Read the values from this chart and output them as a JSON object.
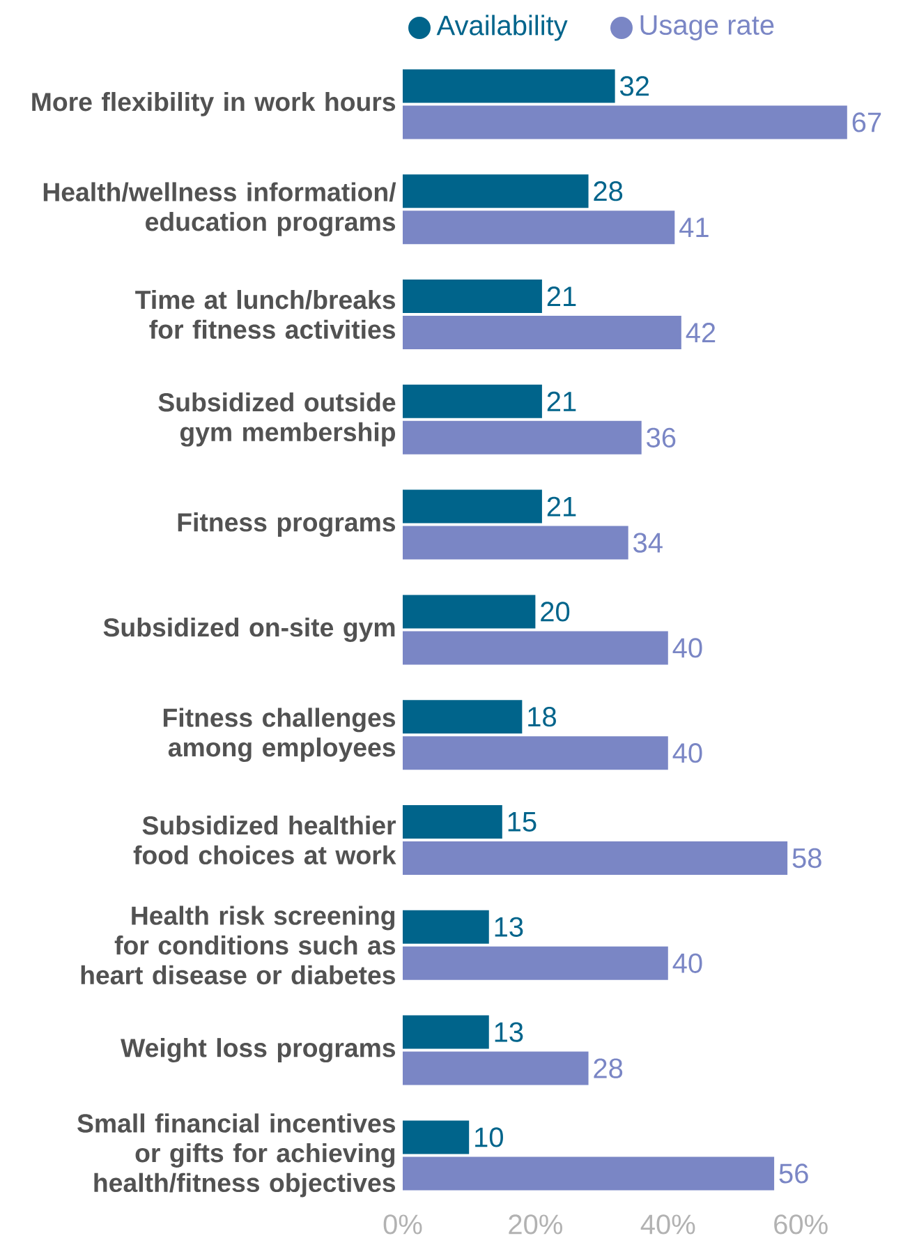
{
  "chart_data": {
    "type": "bar",
    "orientation": "horizontal",
    "categories": [
      "More flexibility in work hours",
      "Health/wellness information/ education programs",
      "Time at lunch/breaks for fitness activities",
      "Subsidized outside gym membership",
      "Fitness programs",
      "Subsidized on-site gym",
      "Fitness challenges among employees",
      "Subsidized healthier food choices at work",
      "Health risk screening for conditions such as heart disease or diabetes",
      "Weight loss programs",
      "Small financial incentives or gifts for achieving health/fitness objectives"
    ],
    "series": [
      {
        "name": "Availability",
        "color": "#00648b",
        "values": [
          32,
          28,
          21,
          21,
          21,
          20,
          18,
          15,
          13,
          13,
          10
        ]
      },
      {
        "name": "Usage rate",
        "color": "#7a86c5",
        "values": [
          67,
          41,
          42,
          36,
          34,
          40,
          40,
          58,
          40,
          28,
          56
        ]
      }
    ],
    "xlim": [
      0,
      67
    ],
    "xticks": [
      {
        "value": 0,
        "label": "0%"
      },
      {
        "value": 20,
        "label": "20%"
      },
      {
        "value": 40,
        "label": "40%"
      },
      {
        "value": 60,
        "label": "60%"
      }
    ],
    "data_labels": true,
    "legend": "top",
    "grid": false
  }
}
